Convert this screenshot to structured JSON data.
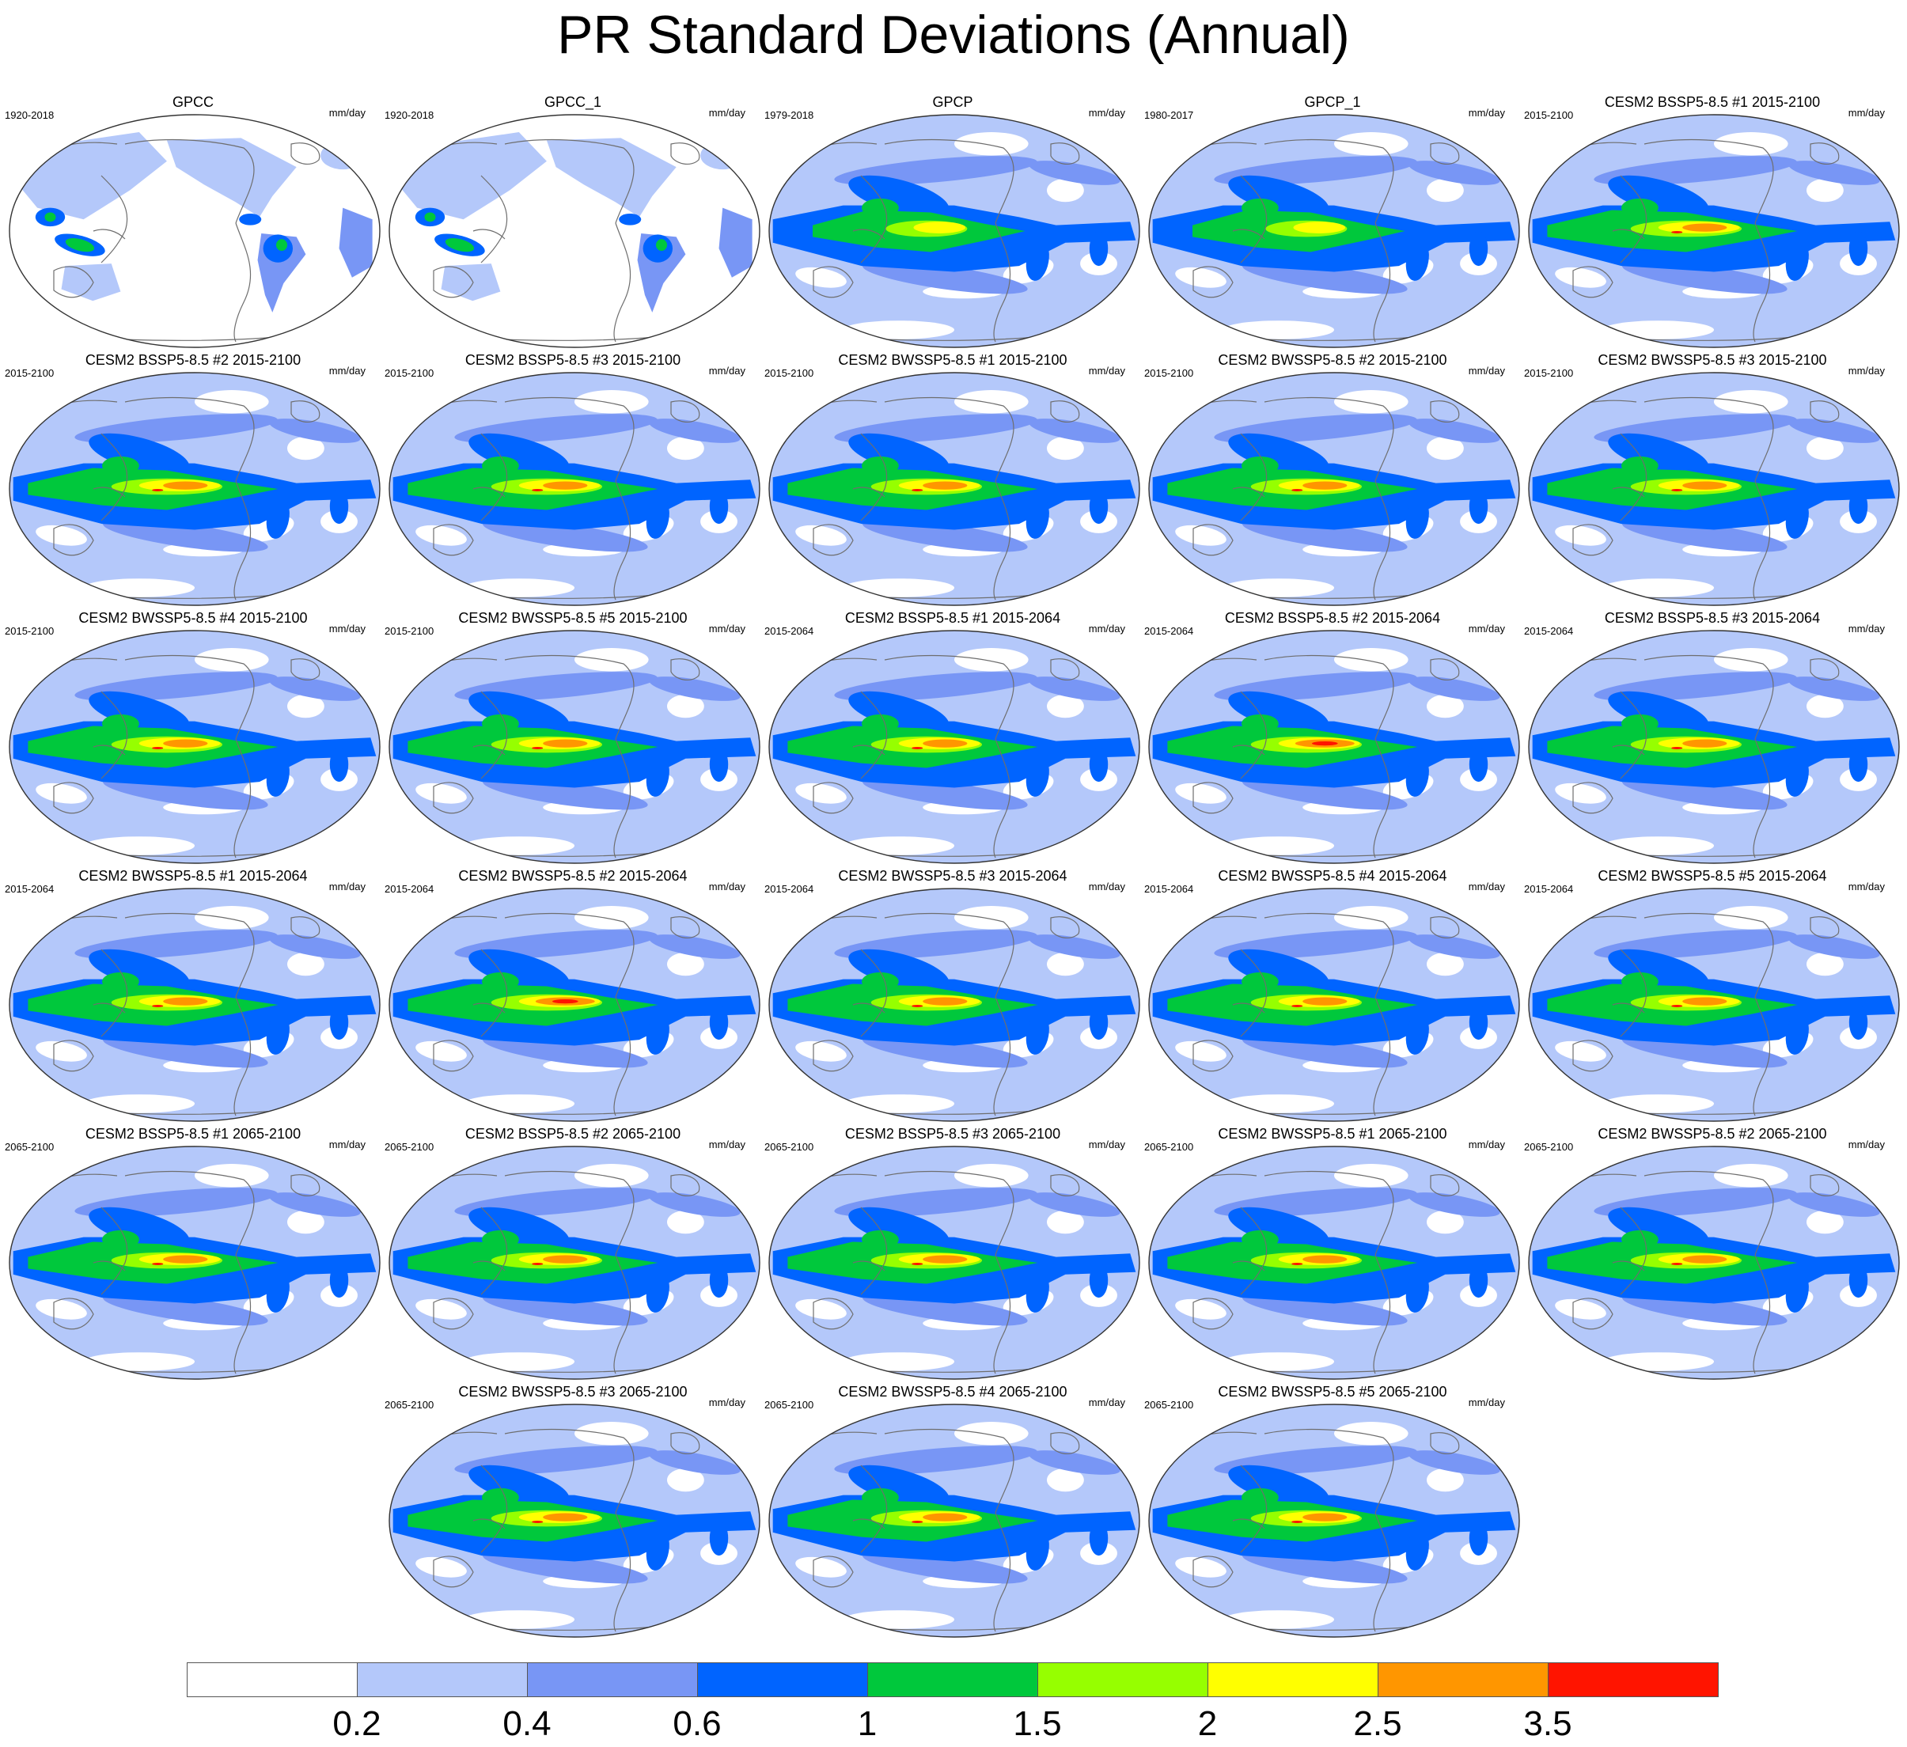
{
  "title": "PR Standard Deviations (Annual)",
  "units": "mm/day",
  "panels": [
    {
      "title": "GPCC",
      "period": "1920-2018",
      "pattern": "land"
    },
    {
      "title": "GPCC_1",
      "period": "1920-2018",
      "pattern": "land"
    },
    {
      "title": "GPCP",
      "period": "1979-2018",
      "pattern": "obs"
    },
    {
      "title": "GPCP_1",
      "period": "1980-2017",
      "pattern": "obs"
    },
    {
      "title": "CESM2 BSSP5-8.5 #1 2015-2100",
      "period": "2015-2100",
      "pattern": "model"
    },
    {
      "title": "CESM2 BSSP5-8.5 #2 2015-2100",
      "period": "2015-2100",
      "pattern": "model"
    },
    {
      "title": "CESM2 BSSP5-8.5 #3 2015-2100",
      "period": "2015-2100",
      "pattern": "model"
    },
    {
      "title": "CESM2 BWSSP5-8.5 #1 2015-2100",
      "period": "2015-2100",
      "pattern": "model"
    },
    {
      "title": "CESM2 BWSSP5-8.5 #2 2015-2100",
      "period": "2015-2100",
      "pattern": "model"
    },
    {
      "title": "CESM2 BWSSP5-8.5 #3 2015-2100",
      "period": "2015-2100",
      "pattern": "model"
    },
    {
      "title": "CESM2 BWSSP5-8.5 #4 2015-2100",
      "period": "2015-2100",
      "pattern": "model"
    },
    {
      "title": "CESM2 BWSSP5-8.5 #5 2015-2100",
      "period": "2015-2100",
      "pattern": "model"
    },
    {
      "title": "CESM2 BSSP5-8.5 #1 2015-2064",
      "period": "2015-2064",
      "pattern": "model"
    },
    {
      "title": "CESM2 BSSP5-8.5 #2 2015-2064",
      "period": "2015-2064",
      "pattern": "model-strong"
    },
    {
      "title": "CESM2 BSSP5-8.5 #3 2015-2064",
      "period": "2015-2064",
      "pattern": "model"
    },
    {
      "title": "CESM2 BWSSP5-8.5 #1 2015-2064",
      "period": "2015-2064",
      "pattern": "model"
    },
    {
      "title": "CESM2 BWSSP5-8.5 #2 2015-2064",
      "period": "2015-2064",
      "pattern": "model-strong"
    },
    {
      "title": "CESM2 BWSSP5-8.5 #3 2015-2064",
      "period": "2015-2064",
      "pattern": "model"
    },
    {
      "title": "CESM2 BWSSP5-8.5 #4 2015-2064",
      "period": "2015-2064",
      "pattern": "model"
    },
    {
      "title": "CESM2 BWSSP5-8.5 #5 2015-2064",
      "period": "2015-2064",
      "pattern": "model"
    },
    {
      "title": "CESM2 BSSP5-8.5 #1 2065-2100",
      "period": "2065-2100",
      "pattern": "model"
    },
    {
      "title": "CESM2 BSSP5-8.5 #2 2065-2100",
      "period": "2065-2100",
      "pattern": "model"
    },
    {
      "title": "CESM2 BSSP5-8.5 #3 2065-2100",
      "period": "2065-2100",
      "pattern": "model"
    },
    {
      "title": "CESM2 BWSSP5-8.5 #1 2065-2100",
      "period": "2065-2100",
      "pattern": "model"
    },
    {
      "title": "CESM2 BWSSP5-8.5 #2 2065-2100",
      "period": "2065-2100",
      "pattern": "model"
    },
    {
      "title": "CESM2 BWSSP5-8.5 #3 2065-2100",
      "period": "2065-2100",
      "pattern": "model"
    },
    {
      "title": "CESM2 BWSSP5-8.5 #4 2065-2100",
      "period": "2065-2100",
      "pattern": "model"
    },
    {
      "title": "CESM2 BWSSP5-8.5 #5 2065-2100",
      "period": "2065-2100",
      "pattern": "model"
    }
  ],
  "colorbar": {
    "colors": [
      "#ffffff",
      "#b4c8fa",
      "#7896f5",
      "#0064ff",
      "#00c83c",
      "#96ff00",
      "#ffff00",
      "#ff9600",
      "#ff1400"
    ],
    "labels": [
      "0.2",
      "0.4",
      "0.6",
      "1",
      "1.5",
      "2",
      "2.5",
      "3.5"
    ]
  }
}
